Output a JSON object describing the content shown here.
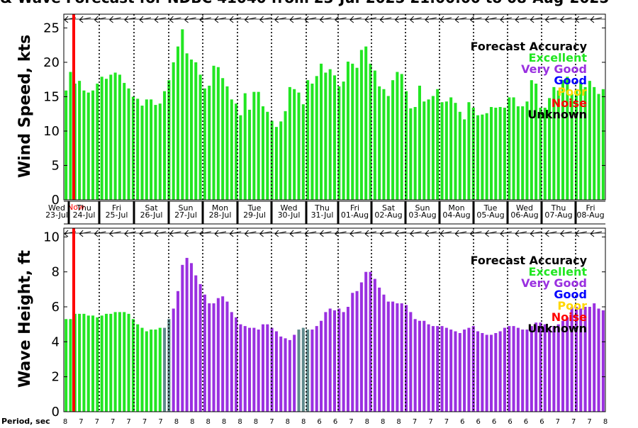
{
  "title": "& Wave Forecast for NDBC 41040 from 23-Jul-2025 21:00:00 to 08-Aug-2025",
  "now_label": "Now",
  "period_label": "Period, sec",
  "colors": {
    "excellent": "#22e622",
    "very_good": "#9a30e0",
    "good": "#0000ff",
    "poor": "#ffd700",
    "noise": "#ff0000",
    "unknown": "#000000",
    "greyish": "#5f8a8c",
    "now_line": "#ff0000"
  },
  "legend": {
    "title": "Forecast Accuracy",
    "items": [
      {
        "label": "Excellent",
        "color": "#22e622"
      },
      {
        "label": "Very Good",
        "color": "#9a30e0"
      },
      {
        "label": "Good",
        "color": "#0000ff"
      },
      {
        "label": "Poor",
        "color": "#ffd700"
      },
      {
        "label": "Noise",
        "color": "#ff0000"
      },
      {
        "label": "Unknown",
        "color": "#000000"
      }
    ]
  },
  "days": [
    {
      "dow": "Wed",
      "date": "23-Jul"
    },
    {
      "dow": "Thu",
      "date": "24-Jul"
    },
    {
      "dow": "Fri",
      "date": "25-Jul"
    },
    {
      "dow": "Sat",
      "date": "26-Jul"
    },
    {
      "dow": "Sun",
      "date": "27-Jul"
    },
    {
      "dow": "Mon",
      "date": "28-Jul"
    },
    {
      "dow": "Tue",
      "date": "29-Jul"
    },
    {
      "dow": "Wed",
      "date": "30-Jul"
    },
    {
      "dow": "Thu",
      "date": "31-Jul"
    },
    {
      "dow": "Fri",
      "date": "01-Aug"
    },
    {
      "dow": "Sat",
      "date": "02-Aug"
    },
    {
      "dow": "Sun",
      "date": "03-Aug"
    },
    {
      "dow": "Mon",
      "date": "04-Aug"
    },
    {
      "dow": "Tue",
      "date": "05-Aug"
    },
    {
      "dow": "Wed",
      "date": "06-Aug"
    },
    {
      "dow": "Thu",
      "date": "07-Aug"
    },
    {
      "dow": "Fri",
      "date": "08-Aug"
    }
  ],
  "period_values": [
    "8",
    "7",
    "7",
    "7",
    "7",
    "7",
    "7",
    "8",
    "8",
    "8",
    "8",
    "8",
    "8",
    "7",
    "8",
    "8",
    "6",
    "6",
    "7",
    "8",
    "8",
    "8",
    "7",
    "7",
    "7",
    "6",
    "6",
    "6",
    "6",
    "6",
    "6",
    "7",
    "7",
    "7",
    "8"
  ],
  "chart_data": [
    {
      "type": "bar",
      "ylabel": "Wind Speed, kts",
      "ylim": [
        0,
        27
      ],
      "yticks": [
        0,
        5,
        10,
        15,
        20,
        25
      ],
      "grid": false,
      "legend_position": "top-right",
      "values": [
        15.9,
        18.6,
        16.9,
        17.3,
        15.9,
        15.6,
        15.9,
        16.9,
        17.9,
        17.6,
        18.2,
        18.5,
        18.2,
        17.0,
        16.2,
        15.0,
        14.7,
        13.7,
        14.6,
        14.6,
        13.8,
        14.0,
        15.8,
        17.4,
        20.0,
        22.3,
        24.8,
        21.3,
        20.4,
        20.0,
        18.2,
        16.2,
        16.6,
        19.5,
        19.3,
        17.7,
        16.5,
        14.6,
        14.0,
        12.3,
        15.5,
        13.1,
        15.7,
        15.7,
        13.6,
        12.8,
        11.5,
        10.6,
        11.4,
        12.9,
        16.4,
        16.1,
        15.6,
        13.9,
        17.4,
        16.9,
        18.0,
        19.8,
        18.5,
        19.0,
        18.1,
        16.5,
        17.2,
        20.1,
        19.8,
        19.2,
        21.8,
        22.3,
        19.8,
        18.8,
        16.5,
        16.1,
        15.1,
        17.4,
        18.6,
        18.3,
        15.8,
        13.3,
        13.5,
        16.6,
        14.3,
        14.6,
        15.1,
        16.1,
        14.2,
        14.3,
        14.9,
        14.1,
        12.8,
        11.7,
        14.2,
        13.4,
        12.3,
        12.4,
        12.6,
        13.5,
        13.4,
        13.5,
        13.4,
        14.9,
        14.9,
        13.6,
        13.6,
        14.3,
        17.4,
        16.9,
        13.4,
        13.4,
        14.8,
        16.4,
        15.9,
        17.4,
        17.9,
        15.4,
        16.1,
        17.1,
        16.4,
        17.3,
        16.4,
        15.4,
        16.1
      ],
      "colors_by_index": "all excellent"
    },
    {
      "type": "bar",
      "ylabel": "Wave Height, ft",
      "ylim": [
        0,
        10.5
      ],
      "yticks": [
        0,
        2,
        4,
        6,
        8,
        10
      ],
      "grid": false,
      "legend_position": "top-right",
      "values": [
        5.3,
        5.3,
        5.6,
        5.6,
        5.6,
        5.5,
        5.5,
        5.4,
        5.5,
        5.6,
        5.6,
        5.7,
        5.7,
        5.7,
        5.6,
        5.3,
        5.0,
        4.8,
        4.6,
        4.7,
        4.7,
        4.8,
        4.8,
        5.3,
        5.9,
        6.9,
        8.4,
        8.8,
        8.5,
        7.8,
        7.3,
        6.7,
        6.2,
        6.2,
        6.5,
        6.6,
        6.3,
        5.7,
        5.4,
        5.0,
        4.9,
        4.8,
        4.8,
        4.7,
        5.0,
        5.0,
        4.8,
        4.6,
        4.3,
        4.2,
        4.1,
        4.4,
        4.7,
        4.8,
        4.7,
        4.7,
        4.9,
        5.2,
        5.7,
        5.9,
        5.8,
        5.9,
        5.7,
        6.0,
        6.8,
        6.9,
        7.4,
        8.0,
        8.0,
        7.6,
        7.1,
        6.7,
        6.3,
        6.3,
        6.2,
        6.2,
        6.1,
        5.7,
        5.3,
        5.2,
        5.2,
        5.0,
        4.9,
        4.9,
        4.9,
        4.8,
        4.7,
        4.6,
        4.5,
        4.7,
        4.8,
        4.9,
        4.6,
        4.5,
        4.4,
        4.4,
        4.5,
        4.6,
        4.8,
        4.9,
        4.9,
        4.8,
        4.7,
        4.7,
        4.9,
        5.1,
        5.1,
        5.0,
        4.8,
        4.9,
        5.0,
        5.2,
        5.4,
        6.0,
        6.0,
        5.9,
        6.0,
        6.0,
        6.2,
        5.9,
        5.8
      ],
      "colors_by_index": "excellent 0-21, greyish 22-23, very good 24-51, greyish 52-54, very good 55-end"
    }
  ]
}
